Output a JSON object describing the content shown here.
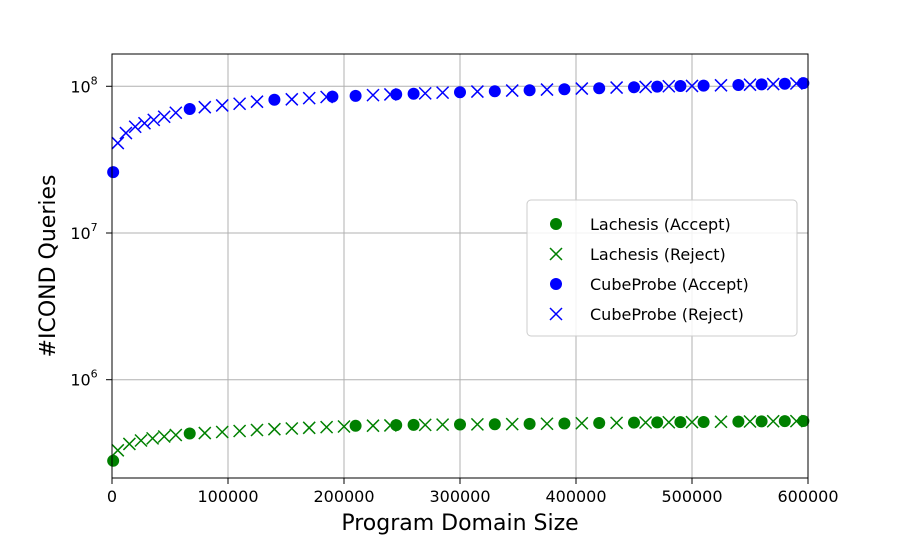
{
  "chart_data": {
    "type": "scatter",
    "xlabel": "Program Domain Size",
    "ylabel": "#ICOND Queries",
    "xlim": [
      0,
      600000
    ],
    "ylim_log10": [
      5.33,
      8.22
    ],
    "y_scale": "log",
    "grid": true,
    "legend_position": "right",
    "x_ticks": [
      {
        "value": 0,
        "label": "0"
      },
      {
        "value": 100000,
        "label": "100000"
      },
      {
        "value": 200000,
        "label": "200000"
      },
      {
        "value": 300000,
        "label": "300000"
      },
      {
        "value": 400000,
        "label": "400000"
      },
      {
        "value": 500000,
        "label": "500000"
      },
      {
        "value": 600000,
        "label": "600000"
      }
    ],
    "y_ticks": [
      {
        "exp": 6,
        "base": "10",
        "sup": "6"
      },
      {
        "exp": 7,
        "base": "10",
        "sup": "7"
      },
      {
        "exp": 8,
        "base": "10",
        "sup": "8"
      }
    ],
    "series": [
      {
        "name": "Lachesis (Accept)",
        "marker": "circle",
        "color": "#008000",
        "points": [
          [
            1000,
            280000
          ],
          [
            67000,
            430000
          ],
          [
            210000,
            485000
          ],
          [
            245000,
            490000
          ],
          [
            260000,
            492000
          ],
          [
            300000,
            495000
          ],
          [
            330000,
            497000
          ],
          [
            360000,
            500000
          ],
          [
            390000,
            503000
          ],
          [
            420000,
            507000
          ],
          [
            450000,
            510000
          ],
          [
            470000,
            512000
          ],
          [
            490000,
            514000
          ],
          [
            510000,
            515000
          ],
          [
            540000,
            518000
          ],
          [
            560000,
            520000
          ],
          [
            580000,
            522000
          ],
          [
            596000,
            523000
          ]
        ]
      },
      {
        "name": "Lachesis (Reject)",
        "marker": "cross",
        "color": "#008000",
        "points": [
          [
            5000,
            330000
          ],
          [
            15000,
            365000
          ],
          [
            25000,
            385000
          ],
          [
            35000,
            398000
          ],
          [
            45000,
            410000
          ],
          [
            55000,
            420000
          ],
          [
            80000,
            433000
          ],
          [
            95000,
            440000
          ],
          [
            110000,
            447000
          ],
          [
            125000,
            454000
          ],
          [
            140000,
            460000
          ],
          [
            155000,
            465000
          ],
          [
            170000,
            470000
          ],
          [
            185000,
            475000
          ],
          [
            200000,
            480000
          ],
          [
            225000,
            486000
          ],
          [
            240000,
            488000
          ],
          [
            270000,
            492000
          ],
          [
            285000,
            494000
          ],
          [
            315000,
            496000
          ],
          [
            345000,
            498000
          ],
          [
            375000,
            501000
          ],
          [
            405000,
            505000
          ],
          [
            435000,
            508000
          ],
          [
            460000,
            511000
          ],
          [
            480000,
            513000
          ],
          [
            500000,
            514000
          ],
          [
            525000,
            517000
          ],
          [
            550000,
            519000
          ],
          [
            570000,
            521000
          ],
          [
            590000,
            522000
          ]
        ]
      },
      {
        "name": "CubeProbe (Accept)",
        "marker": "circle",
        "color": "#0000ff",
        "points": [
          [
            1000,
            26000000
          ],
          [
            67000,
            70000000
          ],
          [
            140000,
            81000000
          ],
          [
            190000,
            85000000
          ],
          [
            210000,
            86000000
          ],
          [
            245000,
            88000000
          ],
          [
            260000,
            89000000
          ],
          [
            300000,
            91000000
          ],
          [
            330000,
            92500000
          ],
          [
            360000,
            94000000
          ],
          [
            390000,
            95500000
          ],
          [
            420000,
            97000000
          ],
          [
            450000,
            98500000
          ],
          [
            470000,
            99500000
          ],
          [
            490000,
            100500000
          ],
          [
            510000,
            101000000
          ],
          [
            540000,
            102000000
          ],
          [
            560000,
            103000000
          ],
          [
            580000,
            104000000
          ],
          [
            596000,
            105000000
          ]
        ]
      },
      {
        "name": "CubeProbe (Reject)",
        "marker": "cross",
        "color": "#0000ff",
        "points": [
          [
            5000,
            41000000
          ],
          [
            12000,
            48000000
          ],
          [
            20000,
            53000000
          ],
          [
            28000,
            56000000
          ],
          [
            36000,
            59000000
          ],
          [
            45000,
            62000000
          ],
          [
            55000,
            66000000
          ],
          [
            80000,
            72000000
          ],
          [
            95000,
            74000000
          ],
          [
            110000,
            76000000
          ],
          [
            125000,
            78500000
          ],
          [
            155000,
            81500000
          ],
          [
            170000,
            83000000
          ],
          [
            185000,
            84500000
          ],
          [
            225000,
            87000000
          ],
          [
            240000,
            88000000
          ],
          [
            270000,
            89500000
          ],
          [
            285000,
            90500000
          ],
          [
            315000,
            92000000
          ],
          [
            345000,
            93500000
          ],
          [
            375000,
            95000000
          ],
          [
            405000,
            96500000
          ],
          [
            435000,
            98000000
          ],
          [
            460000,
            99000000
          ],
          [
            480000,
            100000000
          ],
          [
            500000,
            100500000
          ],
          [
            525000,
            101500000
          ],
          [
            550000,
            102500000
          ],
          [
            570000,
            103500000
          ],
          [
            590000,
            104500000
          ]
        ]
      }
    ]
  }
}
